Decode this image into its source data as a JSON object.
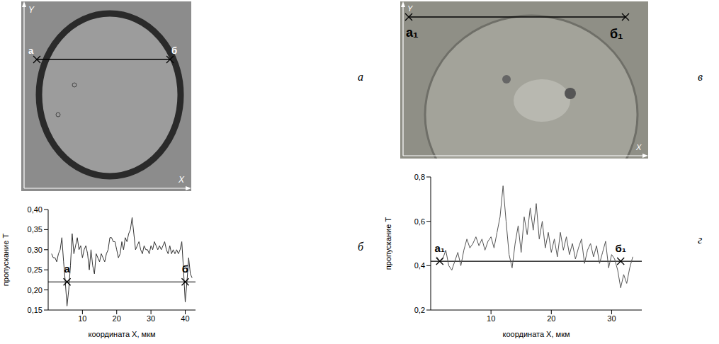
{
  "images": [
    {
      "panel": "а",
      "axis_labels": [
        "Y",
        "X"
      ],
      "line_labels": [
        "а",
        "б"
      ]
    },
    {
      "panel": "в",
      "axis_labels": [
        "Y",
        "X"
      ],
      "line_labels": [
        "а₁",
        "б₁"
      ]
    }
  ],
  "chart_data": [
    {
      "type": "line",
      "panel": "б",
      "x_label": "координата X, мкм",
      "y_label": "пропускание T",
      "color": "#333333",
      "x": [
        1,
        1.5,
        2,
        2.5,
        3,
        3.5,
        4,
        4.5,
        5,
        5.5,
        6,
        6.5,
        7,
        7.5,
        8,
        8.5,
        9,
        9.5,
        10,
        10.5,
        11,
        11.5,
        12,
        12.5,
        13,
        13.5,
        14,
        14.5,
        15,
        15.5,
        16,
        16.5,
        17,
        17.5,
        18,
        18.5,
        19,
        19.5,
        20,
        20.5,
        21,
        21.5,
        22,
        22.5,
        23,
        23.5,
        24,
        24.5,
        25,
        25.5,
        26,
        26.5,
        27,
        27.5,
        28,
        28.5,
        29,
        29.5,
        30,
        30.5,
        31,
        31.5,
        32,
        32.5,
        33,
        33.5,
        34,
        34.5,
        35,
        35.5,
        36,
        36.5,
        37,
        37.5,
        38,
        38.5,
        39,
        39.5,
        40,
        40.5,
        41,
        41.5,
        42
      ],
      "values": [
        0.29,
        0.28,
        0.28,
        0.27,
        0.29,
        0.3,
        0.33,
        0.27,
        0.22,
        0.16,
        0.2,
        0.26,
        0.34,
        0.29,
        0.31,
        0.33,
        0.3,
        0.31,
        0.28,
        0.3,
        0.31,
        0.29,
        0.25,
        0.3,
        0.26,
        0.24,
        0.29,
        0.28,
        0.27,
        0.29,
        0.28,
        0.27,
        0.29,
        0.3,
        0.33,
        0.33,
        0.32,
        0.32,
        0.3,
        0.28,
        0.29,
        0.32,
        0.3,
        0.33,
        0.32,
        0.34,
        0.35,
        0.38,
        0.34,
        0.3,
        0.31,
        0.32,
        0.3,
        0.29,
        0.31,
        0.3,
        0.3,
        0.29,
        0.31,
        0.3,
        0.32,
        0.31,
        0.3,
        0.31,
        0.3,
        0.31,
        0.32,
        0.3,
        0.29,
        0.31,
        0.29,
        0.3,
        0.29,
        0.3,
        0.29,
        0.3,
        0.32,
        0.25,
        0.17,
        0.22,
        0.28,
        0.24,
        0.23
      ],
      "xlim": [
        0,
        43
      ],
      "xticks": [
        10,
        20,
        30,
        40
      ],
      "ylim": [
        0.15,
        0.4
      ],
      "yticks": [
        {
          "value": 0.15,
          "label": "0,15"
        },
        {
          "value": 0.2,
          "label": "0,20"
        },
        {
          "value": 0.25,
          "label": "0,25"
        },
        {
          "value": 0.3,
          "label": "0,30"
        },
        {
          "value": 0.35,
          "label": "0,35"
        },
        {
          "value": 0.4,
          "label": "0,40"
        }
      ],
      "reference_level": 0.22,
      "annotations": [
        {
          "text": "а",
          "x": 5.5,
          "y": 0.22
        },
        {
          "text": "б",
          "x": 40,
          "y": 0.22
        }
      ]
    },
    {
      "type": "line",
      "panel": "г",
      "x_label": "координата X, мкм",
      "y_label": "пропускание T",
      "color": "#555555",
      "x": [
        1,
        1.5,
        2,
        2.5,
        3,
        3.5,
        4,
        4.5,
        5,
        5.5,
        6,
        6.5,
        7,
        7.5,
        8,
        8.5,
        9,
        9.5,
        10,
        10.5,
        11,
        11.5,
        12,
        12.5,
        13,
        13.5,
        14,
        14.5,
        15,
        15.5,
        16,
        16.5,
        17,
        17.5,
        18,
        18.5,
        19,
        19.5,
        20,
        20.5,
        21,
        21.5,
        22,
        22.5,
        23,
        23.5,
        24,
        24.5,
        25,
        25.5,
        26,
        26.5,
        27,
        27.5,
        28,
        28.5,
        29,
        29.5,
        30,
        30.5,
        31,
        31.5,
        32,
        32.5,
        33,
        33.5
      ],
      "values": [
        0.44,
        0.42,
        0.43,
        0.47,
        0.4,
        0.38,
        0.42,
        0.46,
        0.4,
        0.47,
        0.52,
        0.48,
        0.5,
        0.53,
        0.49,
        0.52,
        0.47,
        0.51,
        0.53,
        0.48,
        0.55,
        0.62,
        0.76,
        0.6,
        0.45,
        0.39,
        0.5,
        0.58,
        0.46,
        0.62,
        0.54,
        0.66,
        0.56,
        0.68,
        0.52,
        0.6,
        0.48,
        0.55,
        0.46,
        0.52,
        0.44,
        0.55,
        0.47,
        0.53,
        0.45,
        0.5,
        0.43,
        0.48,
        0.52,
        0.41,
        0.47,
        0.5,
        0.44,
        0.49,
        0.41,
        0.46,
        0.51,
        0.39,
        0.45,
        0.43,
        0.38,
        0.3,
        0.36,
        0.32,
        0.39,
        0.44
      ],
      "xlim": [
        0,
        35
      ],
      "xticks": [
        10,
        20,
        30
      ],
      "ylim": [
        0.2,
        0.8
      ],
      "yticks": [
        {
          "value": 0.2,
          "label": "0,2"
        },
        {
          "value": 0.4,
          "label": "0,4"
        },
        {
          "value": 0.6,
          "label": "0,6"
        },
        {
          "value": 0.8,
          "label": "0,8"
        }
      ],
      "reference_level": 0.42,
      "annotations": [
        {
          "text": "а₁",
          "x": 1.5,
          "y": 0.42
        },
        {
          "text": "б₁",
          "x": 31.5,
          "y": 0.42
        }
      ]
    }
  ]
}
